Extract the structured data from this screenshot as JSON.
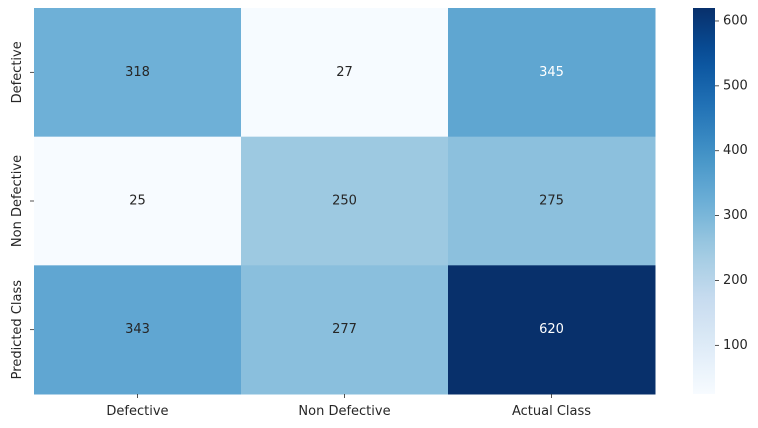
{
  "chart_data": {
    "type": "heatmap",
    "title": "",
    "xlabel": "",
    "ylabel": "",
    "x_categories": [
      "Defective",
      "Non Defective",
      "Actual Class"
    ],
    "y_categories": [
      "Defective",
      "Non Defective",
      "Predicted Class"
    ],
    "values": [
      [
        318,
        27,
        345
      ],
      [
        25,
        250,
        275
      ],
      [
        343,
        277,
        620
      ]
    ],
    "colormap": "Blues",
    "colorbar": {
      "min": 25,
      "max": 620,
      "ticks": [
        100,
        200,
        300,
        400,
        500,
        600
      ]
    },
    "grid": false,
    "legend": "none"
  }
}
